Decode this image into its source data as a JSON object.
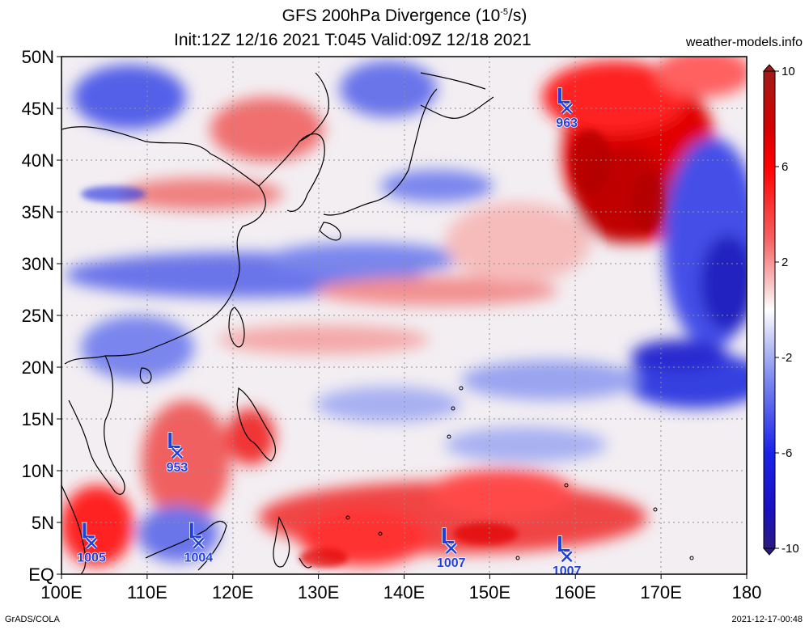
{
  "title": {
    "line1_main": "GFS 200hPa Divergence (10",
    "line1_exp": "-5",
    "line1_tail": "/s)",
    "line2": "Init:12Z 12/16 2021 T:045 Valid:09Z 12/18 2021"
  },
  "site": "weather-models.info",
  "footer": {
    "left": "GrADS/COLA",
    "right": "2021-12-17-00:48"
  },
  "axes": {
    "lon_labels": [
      "100E",
      "110E",
      "120E",
      "130E",
      "140E",
      "150E",
      "160E",
      "170E",
      "180"
    ],
    "lat_labels": [
      "50N",
      "45N",
      "40N",
      "35N",
      "30N",
      "25N",
      "20N",
      "15N",
      "10N",
      "5N",
      "EQ"
    ],
    "lon_range": [
      100,
      180
    ],
    "lat_range": [
      0,
      50
    ]
  },
  "colorbar": {
    "labels": [
      "10",
      "6",
      "2",
      "-2",
      "-6",
      "-10"
    ],
    "colors": [
      "#a11a1a",
      "#e00000",
      "#f23c3c",
      "#f58a8a",
      "#f7c4c4",
      "#ffffff",
      "#c8ccf5",
      "#8c96ee",
      "#4d5ae8",
      "#1a22e0",
      "#2a1a9a"
    ]
  },
  "lows": [
    {
      "pressure": "963",
      "lon": 159,
      "lat": 45
    },
    {
      "pressure": "953",
      "lon": 113.5,
      "lat": 11.7
    },
    {
      "pressure": "1005",
      "lon": 103.5,
      "lat": 3
    },
    {
      "pressure": "1004",
      "lon": 116,
      "lat": 3
    },
    {
      "pressure": "1007",
      "lon": 145.5,
      "lat": 2.5
    },
    {
      "pressure": "1007",
      "lon": 159,
      "lat": 1.7
    }
  ],
  "low_letter": "L"
}
